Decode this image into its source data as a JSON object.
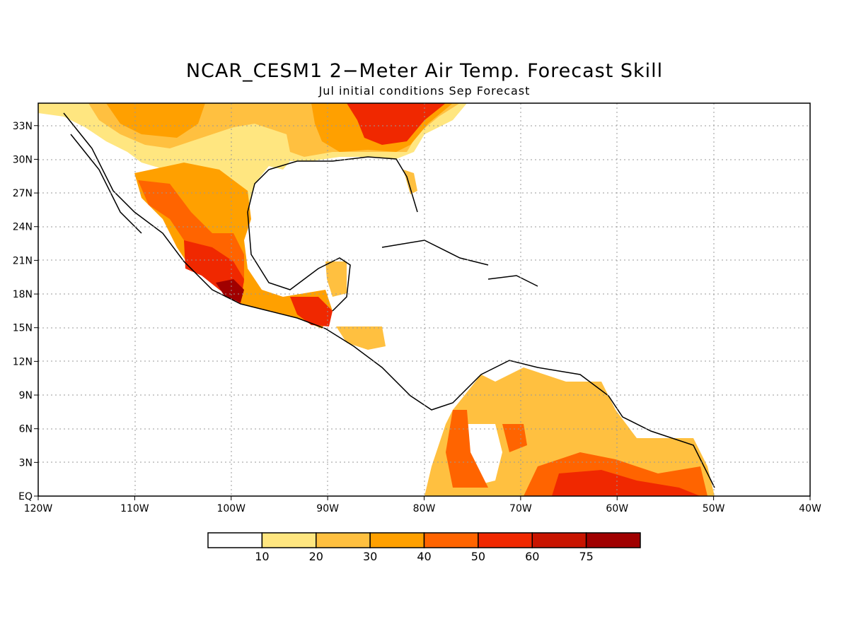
{
  "title": "NCAR_CESM1 2−Meter Air Temp. Forecast Skill",
  "subtitle": "Jul initial conditions  Sep Forecast",
  "map": {
    "lon_range": [
      -120,
      -40
    ],
    "lat_range": [
      0,
      35
    ],
    "grid": "dotted",
    "lat_labels": [
      "33N",
      "30N",
      "27N",
      "24N",
      "21N",
      "18N",
      "15N",
      "12N",
      "9N",
      "6N",
      "3N",
      "EQ"
    ],
    "lat_values": [
      33,
      30,
      27,
      24,
      21,
      18,
      15,
      12,
      9,
      6,
      3,
      0
    ],
    "lon_labels": [
      "120W",
      "110W",
      "100W",
      "90W",
      "80W",
      "70W",
      "60W",
      "50W",
      "40W"
    ],
    "lon_values": [
      -120,
      -110,
      -100,
      -90,
      -80,
      -70,
      -60,
      -50,
      -40
    ]
  },
  "colorbar": {
    "labels": [
      "10",
      "20",
      "30",
      "40",
      "50",
      "60",
      "75"
    ],
    "colors": [
      "#ffffff",
      "#ffe680",
      "#ffc040",
      "#ffa000",
      "#ff6400",
      "#f02800",
      "#c81400",
      "#a00000"
    ]
  }
}
